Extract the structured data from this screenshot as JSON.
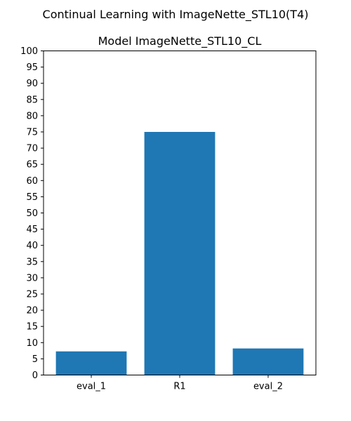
{
  "figure": {
    "suptitle": "Continual Learning with ImageNette_STL10(T4)"
  },
  "chart_data": {
    "type": "bar",
    "title": "Model ImageNette_STL10_CL",
    "xlabel": "",
    "ylabel": "",
    "categories": [
      "eval_1",
      "R1",
      "eval_2"
    ],
    "values": [
      7.3,
      75.0,
      8.2
    ],
    "ylim": [
      0,
      100
    ],
    "yticks": [
      0,
      5,
      10,
      15,
      20,
      25,
      30,
      35,
      40,
      45,
      50,
      55,
      60,
      65,
      70,
      75,
      80,
      85,
      90,
      95,
      100
    ],
    "grid": false,
    "legend": "none",
    "bar_color": "#1f77b4"
  }
}
